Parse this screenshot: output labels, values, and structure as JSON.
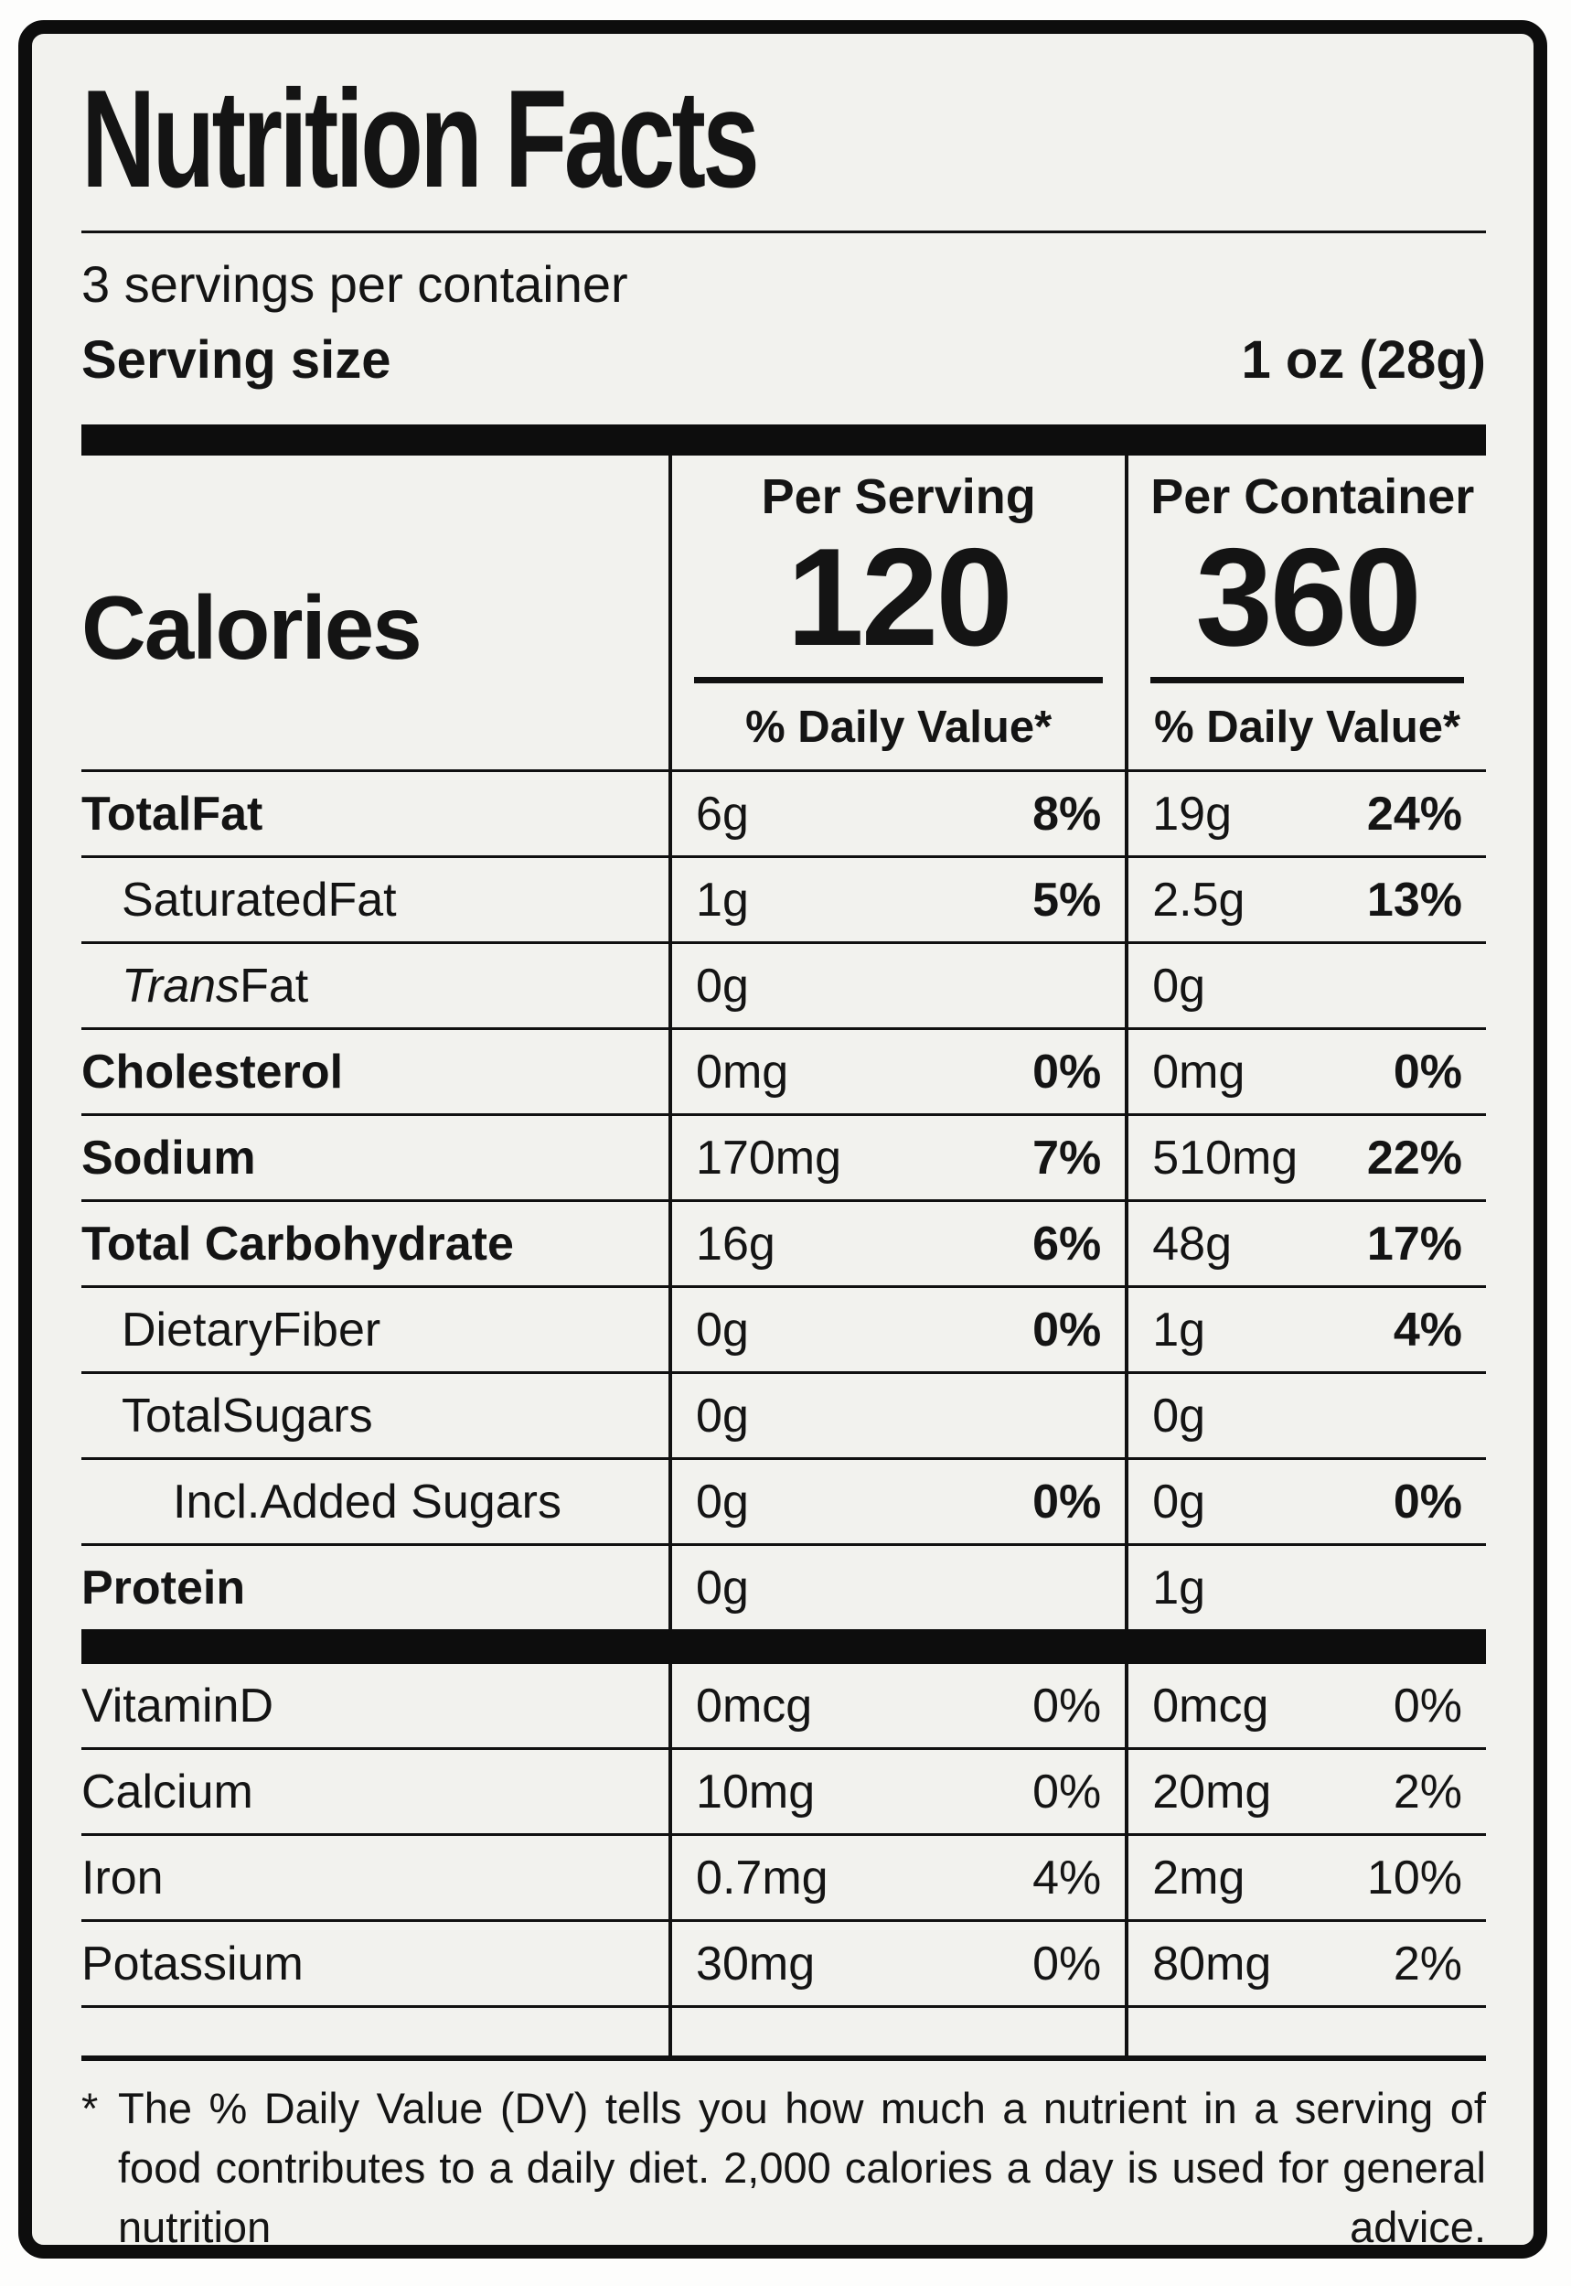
{
  "label": {
    "title": "Nutrition Facts",
    "servings_per_container": "3 servings per container",
    "serving_size_label": "Serving size",
    "serving_size_value": "1 oz (28g)",
    "calories_label": "Calories",
    "per_serving_header": "Per Serving",
    "per_container_header": "Per Container",
    "calories_per_serving": "120",
    "calories_per_container": "360",
    "daily_value_header_serving": "% Daily Value*",
    "daily_value_header_container": "% Daily Value*",
    "rows": [
      {
        "name": "TotalFat",
        "serving_amount": "6g",
        "serving_dv": "8%",
        "container_amount": "19g",
        "container_dv": "24%"
      },
      {
        "name": "SaturatedFat",
        "serving_amount": "1g",
        "serving_dv": "5%",
        "container_amount": "2.5g",
        "container_dv": "13%"
      },
      {
        "name_italic": "Trans",
        "name": " Fat",
        "serving_amount": "0g",
        "serving_dv": "",
        "container_amount": "0g",
        "container_dv": ""
      },
      {
        "name": "Cholesterol",
        "serving_amount": "0mg",
        "serving_dv": "0%",
        "container_amount": "0mg",
        "container_dv": "0%"
      },
      {
        "name": "Sodium",
        "serving_amount": "170mg",
        "serving_dv": "7%",
        "container_amount": "510mg",
        "container_dv": "22%"
      },
      {
        "name": "Total Carbohydrate",
        "serving_amount": "16g",
        "serving_dv": "6%",
        "container_amount": "48g",
        "container_dv": "17%"
      },
      {
        "name": "DietaryFiber",
        "serving_amount": "0g",
        "serving_dv": "0%",
        "container_amount": "1g",
        "container_dv": "4%"
      },
      {
        "name": "TotalSugars",
        "serving_amount": "0g",
        "serving_dv": "",
        "container_amount": "0g",
        "container_dv": ""
      },
      {
        "name": "Incl.Added Sugars",
        "serving_amount": "0g",
        "serving_dv": "0%",
        "container_amount": "0g",
        "container_dv": "0%"
      },
      {
        "name": "Protein",
        "serving_amount": "0g",
        "serving_dv": "",
        "container_amount": "1g",
        "container_dv": ""
      }
    ],
    "vitamins": [
      {
        "name": "VitaminD",
        "serving_amount": "0mcg",
        "serving_dv": "0%",
        "container_amount": "0mcg",
        "container_dv": "0%"
      },
      {
        "name": "Calcium",
        "serving_amount": "10mg",
        "serving_dv": "0%",
        "container_amount": "20mg",
        "container_dv": "2%"
      },
      {
        "name": "Iron",
        "serving_amount": "0.7mg",
        "serving_dv": "4%",
        "container_amount": "2mg",
        "container_dv": "10%"
      },
      {
        "name": "Potassium",
        "serving_amount": "30mg",
        "serving_dv": "0%",
        "container_amount": "80mg",
        "container_dv": "2%"
      }
    ],
    "footnote_marker": "*",
    "footnote": "The % Daily Value (DV) tells you how much a nutrient in a serving of food contributes to a daily diet. 2,000 calories a day is used for general nutrition advice."
  }
}
